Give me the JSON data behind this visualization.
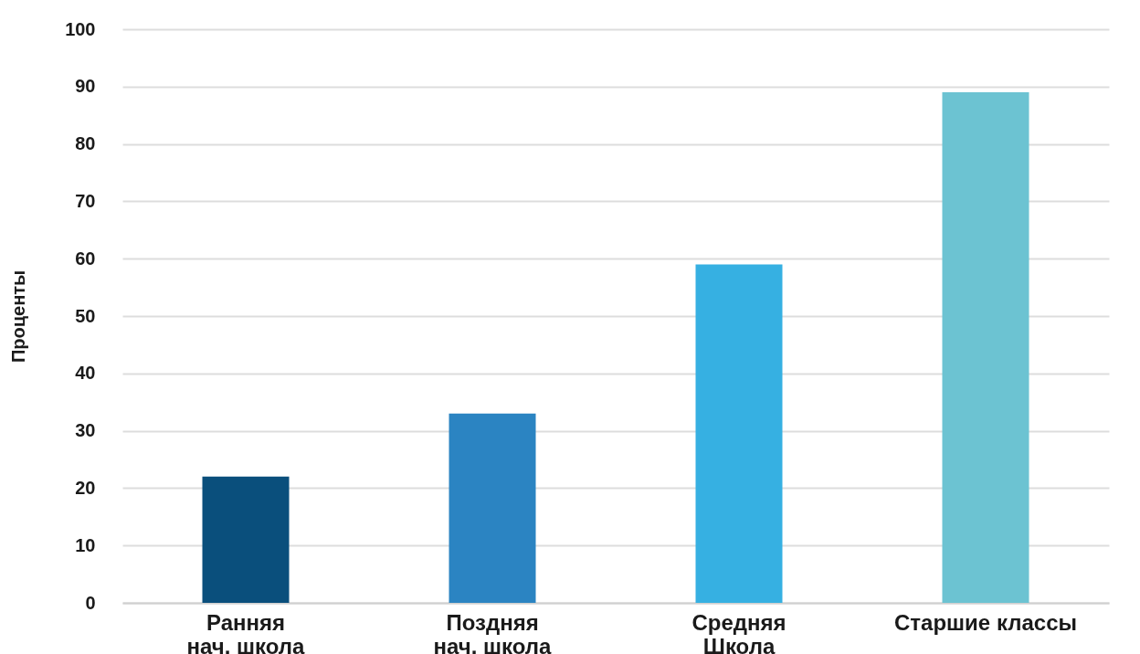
{
  "chart_data": {
    "type": "bar",
    "ylabel": "Проценты",
    "categories": [
      "Ранняя\nнач. школа",
      "Поздняя\nнач. школа",
      "Средняя\nШкола",
      "Старшие классы"
    ],
    "values": [
      22,
      33,
      59,
      89
    ],
    "colors": [
      "#0a4f7c",
      "#2b84c2",
      "#36b0e2",
      "#6cc3d2"
    ],
    "ylim": [
      0,
      100
    ],
    "yticks": [
      0,
      10,
      20,
      30,
      40,
      50,
      60,
      70,
      80,
      90,
      100
    ],
    "grid": "y"
  }
}
